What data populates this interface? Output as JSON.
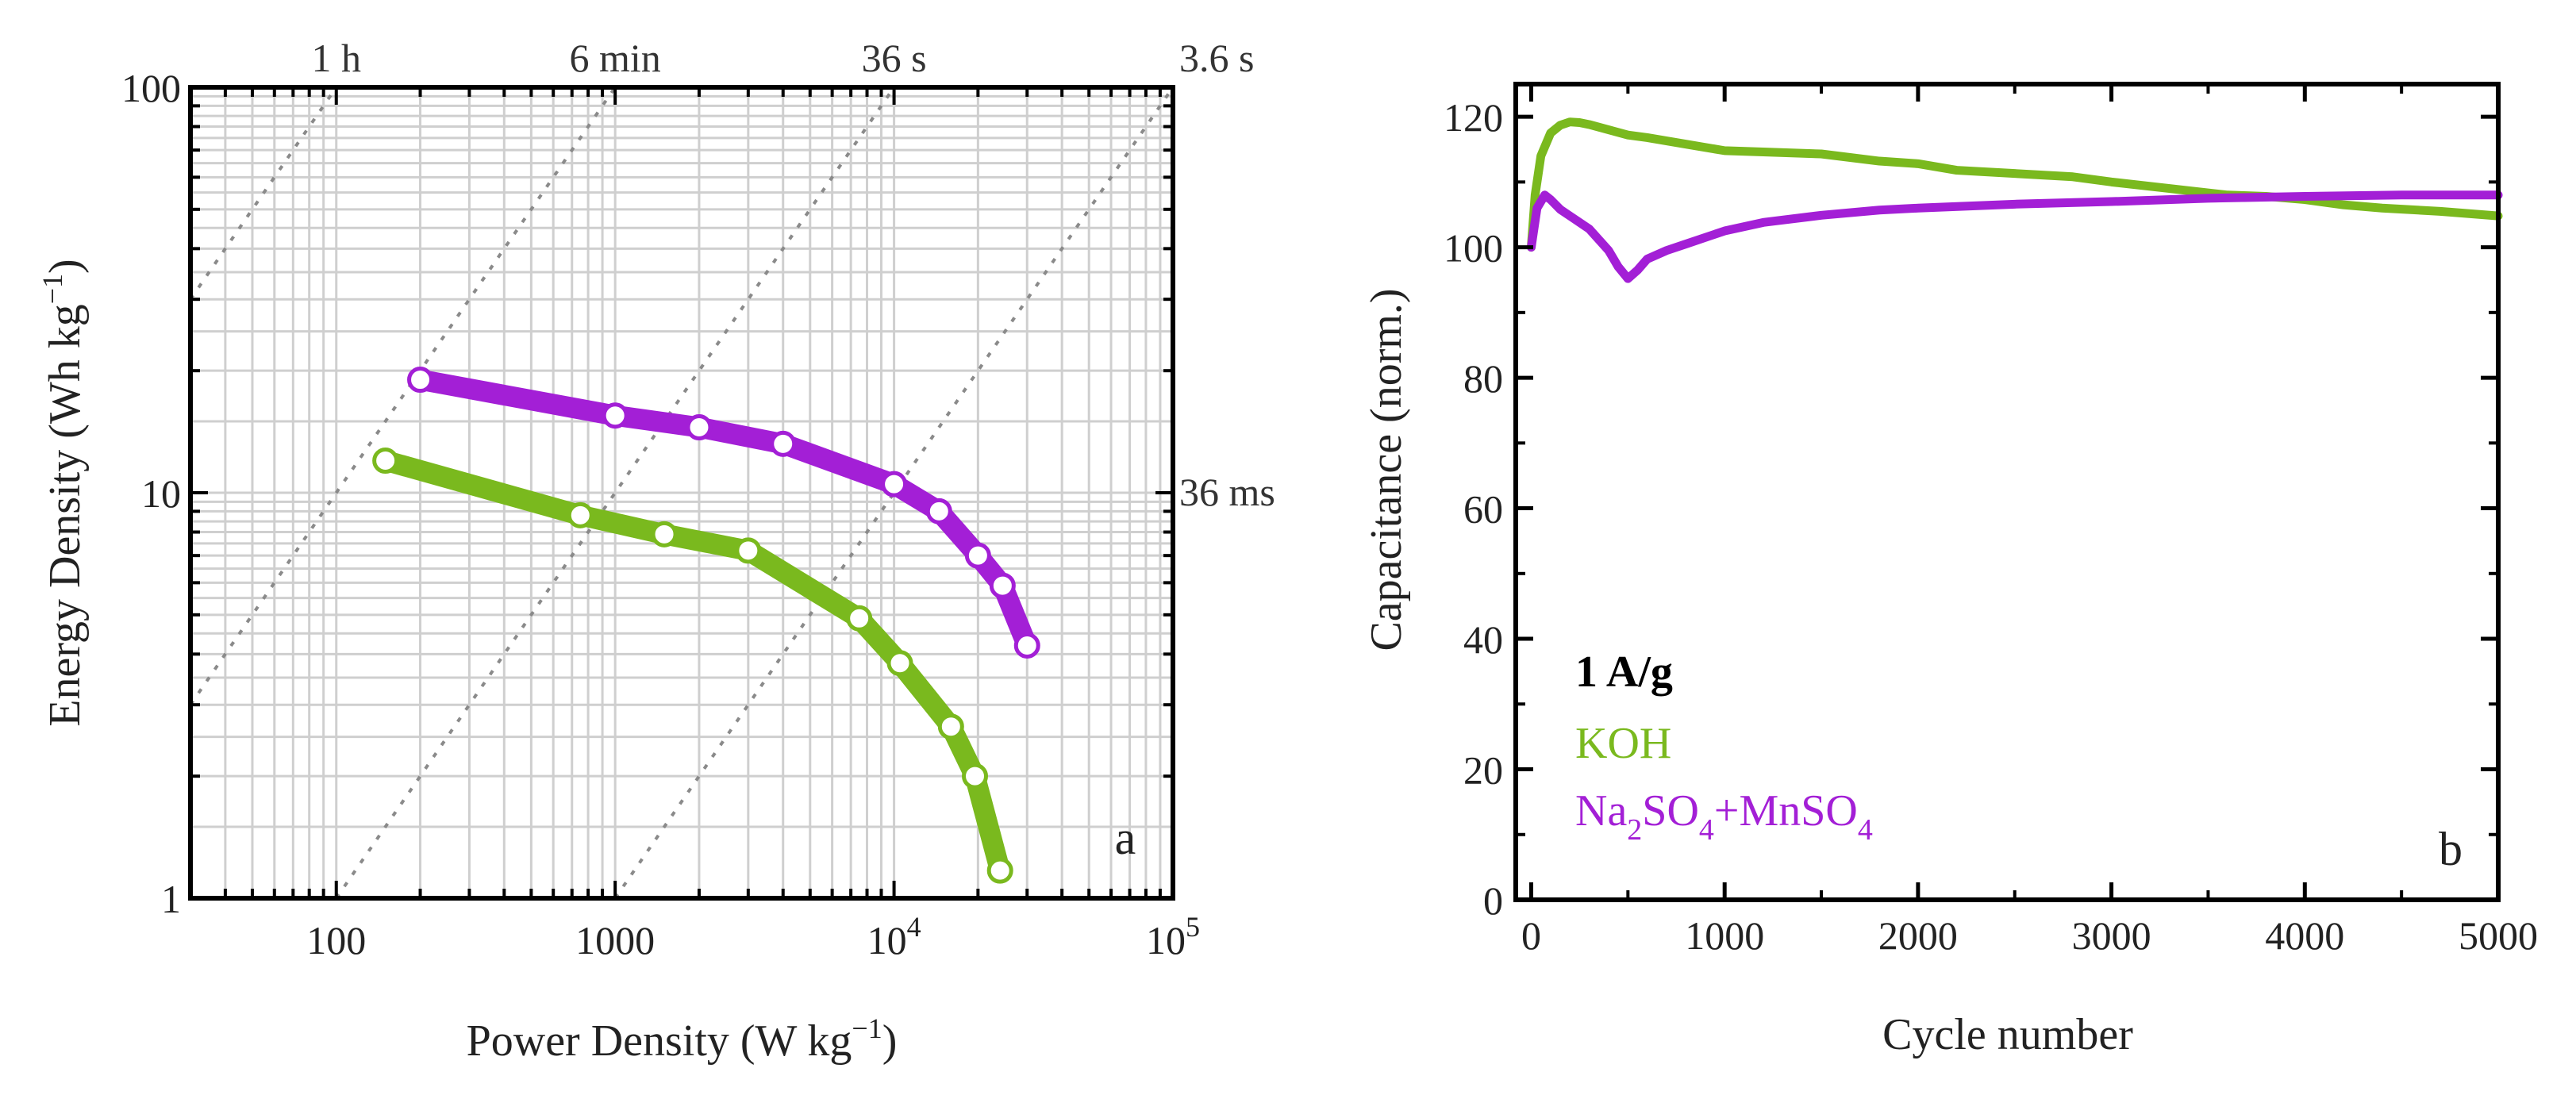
{
  "chart_data": [
    {
      "type": "line",
      "panel_label": "a",
      "xlabel_main": "Power Density (W kg",
      "xlabel_sup": "−1",
      "xlabel_end": ")",
      "ylabel_main": "Energy Density (Wh kg",
      "ylabel_sup": "−1",
      "ylabel_end": ")",
      "x_scale": "log",
      "y_scale": "log",
      "xlim": [
        30,
        100000
      ],
      "ylim": [
        1,
        100
      ],
      "grid": true,
      "x_ticks": [
        {
          "value": 100,
          "base": "100",
          "exp": ""
        },
        {
          "value": 1000,
          "base": "1000",
          "exp": ""
        },
        {
          "value": 10000,
          "base": "10",
          "exp": "4"
        },
        {
          "value": 100000,
          "base": "10",
          "exp": "5"
        }
      ],
      "y_ticks": [
        {
          "value": 1,
          "label": "1"
        },
        {
          "value": 10,
          "label": "10"
        },
        {
          "value": 100,
          "label": "100"
        }
      ],
      "time_lines": [
        {
          "label": "1 h",
          "hours": 1,
          "label_side": "top"
        },
        {
          "label": "6 min",
          "hours": 0.1,
          "label_side": "top"
        },
        {
          "label": "36 s",
          "hours": 0.01,
          "label_side": "top"
        },
        {
          "label": "3.6 s",
          "hours": 0.001,
          "label_side": "top-right"
        },
        {
          "label": "36 ms",
          "hours": 1e-05,
          "label_side": "right"
        }
      ],
      "series": [
        {
          "name": "Na2SO4+MnSO4",
          "color": "#A31FD6",
          "x": [
            200,
            1000,
            2000,
            4000,
            10000,
            14500,
            20000,
            24500,
            30000
          ],
          "y": [
            19,
            15.5,
            14.5,
            13.2,
            10.5,
            9.0,
            7.0,
            5.9,
            4.2
          ]
        },
        {
          "name": "KOH",
          "color": "#7AB91E",
          "x": [
            150,
            750,
            1500,
            3000,
            7500,
            10500,
            16000,
            19500,
            24000
          ],
          "y": [
            12,
            8.8,
            7.9,
            7.2,
            4.9,
            3.8,
            2.65,
            2.0,
            1.17
          ]
        }
      ]
    },
    {
      "type": "line",
      "panel_label": "b",
      "xlabel": "Cycle number",
      "ylabel": "Capacitance (norm.)",
      "xlim": [
        -80,
        5000
      ],
      "ylim": [
        0,
        125
      ],
      "grid": false,
      "x_ticks": [
        0,
        1000,
        2000,
        3000,
        4000,
        5000
      ],
      "y_ticks": [
        0,
        20,
        40,
        60,
        80,
        100,
        120
      ],
      "legend_title": "1 A/g",
      "legend_placement": "bottom-left",
      "series": [
        {
          "name": "KOH",
          "legend_label": "KOH",
          "color": "#7AB91E",
          "x": [
            0,
            20,
            50,
            100,
            150,
            200,
            250,
            300,
            400,
            500,
            600,
            800,
            1000,
            1200,
            1500,
            1800,
            2000,
            2200,
            2500,
            2800,
            3000,
            3300,
            3600,
            3800,
            4000,
            4200,
            4400,
            4700,
            5000
          ],
          "y": [
            100,
            108,
            114,
            117.5,
            118.7,
            119.2,
            119.1,
            118.8,
            118,
            117.2,
            116.8,
            115.8,
            114.8,
            114.6,
            114.3,
            113.2,
            112.8,
            111.8,
            111.3,
            110.8,
            110,
            109,
            108,
            107.8,
            107.3,
            106.5,
            106,
            105.5,
            104.8
          ]
        },
        {
          "name": "Na2SO4+MnSO4",
          "legend_parts": [
            "Na",
            "2",
            "SO",
            "4",
            "+MnSO",
            "4"
          ],
          "color": "#A31FD6",
          "x": [
            0,
            30,
            70,
            100,
            150,
            200,
            300,
            400,
            450,
            500,
            550,
            600,
            700,
            800,
            1000,
            1200,
            1500,
            1800,
            2000,
            2500,
            3000,
            3500,
            4000,
            4500,
            5000
          ],
          "y": [
            100,
            106,
            108,
            107.3,
            105.8,
            104.8,
            102.8,
            99.5,
            97,
            95.2,
            96.5,
            98.2,
            99.5,
            100.5,
            102.5,
            103.8,
            104.9,
            105.7,
            106,
            106.6,
            107,
            107.5,
            107.8,
            108,
            108
          ]
        }
      ]
    }
  ]
}
